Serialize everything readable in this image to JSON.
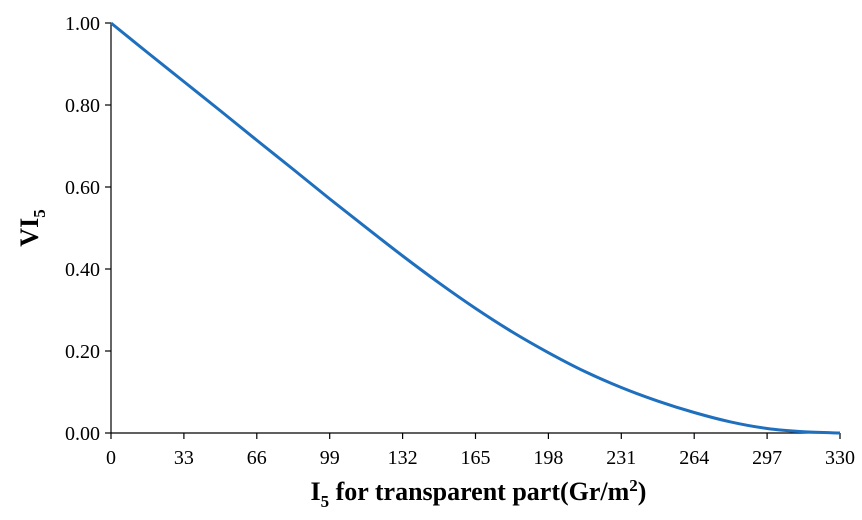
{
  "chart_data": {
    "type": "line",
    "xlabel": {
      "main": "I",
      "sub": "5",
      "rest": " for transparent part(Gr/m",
      "sup": "2",
      "end": ")"
    },
    "ylabel": {
      "main": "VI",
      "sub": "5"
    },
    "x_ticks": [
      "0",
      "33",
      "66",
      "99",
      "132",
      "165",
      "198",
      "231",
      "264",
      "297",
      "330"
    ],
    "y_ticks": [
      "0.00",
      "0.20",
      "0.40",
      "0.60",
      "0.80",
      "1.00"
    ],
    "xlim": [
      0,
      330
    ],
    "ylim": [
      0,
      1
    ],
    "grid": false,
    "series": [
      {
        "color": "#1f6fbf",
        "x": [
          0,
          16.5,
          33,
          49.5,
          66,
          82.5,
          99,
          115.5,
          132,
          148.5,
          165,
          181.5,
          198,
          214.5,
          231,
          247.5,
          264,
          280.5,
          297,
          313.5,
          330
        ],
        "y": [
          1.0,
          0.928,
          0.857,
          0.786,
          0.714,
          0.643,
          0.571,
          0.501,
          0.432,
          0.366,
          0.304,
          0.247,
          0.196,
          0.15,
          0.111,
          0.078,
          0.05,
          0.027,
          0.011,
          0.003,
          0.0
        ]
      }
    ]
  }
}
